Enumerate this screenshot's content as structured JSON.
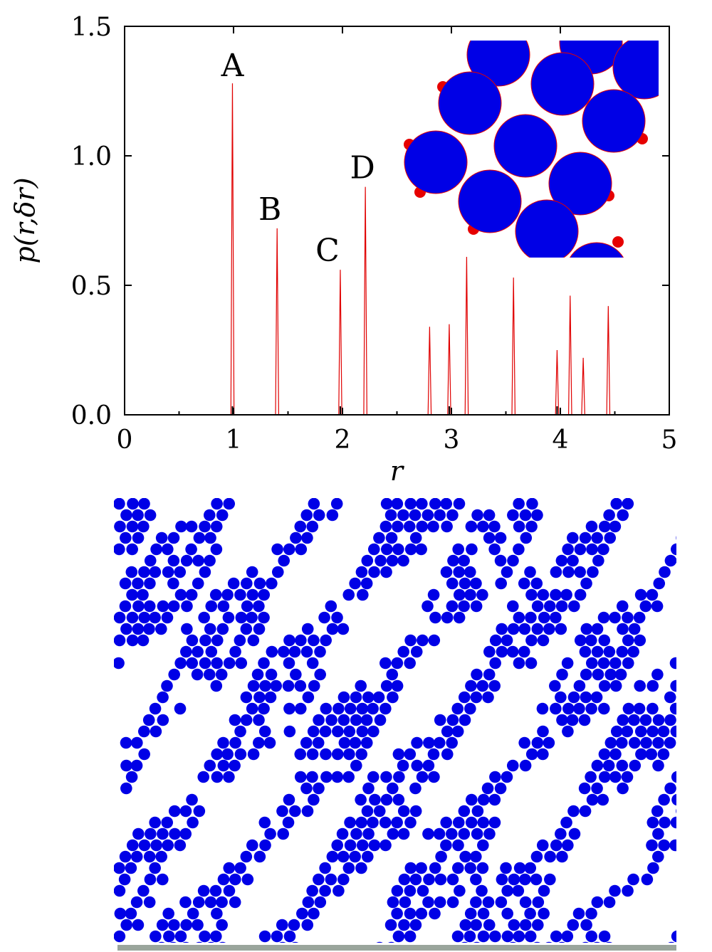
{
  "chart_data": {
    "type": "bar",
    "style": "spike",
    "xlabel": "r",
    "ylabel": "p(r,δr)",
    "xlim": [
      0,
      5
    ],
    "ylim": [
      0,
      1.5
    ],
    "xticks": [
      0,
      1,
      2,
      3,
      4,
      5
    ],
    "xtick_labels": [
      "0",
      "1",
      "2",
      "3",
      "4",
      "5"
    ],
    "yticks": [
      0,
      0.5,
      1.0,
      1.5
    ],
    "ytick_labels": [
      "0.0",
      "0.5",
      "1.0",
      "1.5"
    ],
    "series_color": "#e00000",
    "points": [
      {
        "x": 0.99,
        "y": 1.28
      },
      {
        "x": 1.4,
        "y": 0.72
      },
      {
        "x": 1.98,
        "y": 0.56
      },
      {
        "x": 2.21,
        "y": 0.88
      },
      {
        "x": 2.8,
        "y": 0.34
      },
      {
        "x": 2.98,
        "y": 0.35
      },
      {
        "x": 3.14,
        "y": 0.61
      },
      {
        "x": 3.57,
        "y": 0.53
      },
      {
        "x": 3.97,
        "y": 0.25
      },
      {
        "x": 4.09,
        "y": 0.46
      },
      {
        "x": 4.21,
        "y": 0.22
      },
      {
        "x": 4.44,
        "y": 0.42
      }
    ],
    "annotations": [
      {
        "text": "A",
        "x": 0.99,
        "y": 1.28
      },
      {
        "text": "B",
        "x": 1.4,
        "y": 0.72
      },
      {
        "text": "C",
        "x": 1.98,
        "y": 0.56
      },
      {
        "text": "D",
        "x": 2.21,
        "y": 0.88
      }
    ],
    "grid": false,
    "inset": {
      "particle_color": "#0000e6",
      "contact_color": "#e60000"
    }
  },
  "packing_image": {
    "particle_color": "#0000e6",
    "floor_color": "#9aa59c"
  }
}
